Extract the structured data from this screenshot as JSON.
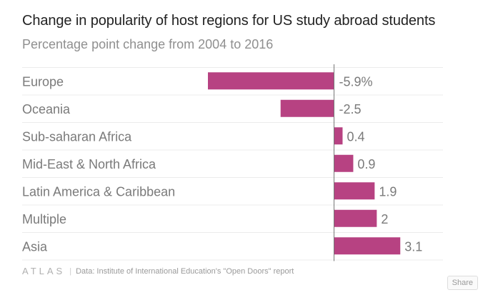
{
  "title": "Change in popularity of host regions for US study abroad students",
  "subtitle": "Percentage point change from 2004 to 2016",
  "footer": {
    "brand": "ATLAS",
    "source": "Data:  Institute of International Education's \"Open Doors\" report"
  },
  "share_label": "Share",
  "colors": {
    "bar": "#b74282",
    "label": "#7a7a7a",
    "grid": "#ececec",
    "zero_line": "#777777"
  },
  "chart_data": {
    "type": "bar",
    "orientation": "horizontal",
    "title": "Change in popularity of host regions for US study abroad students",
    "subtitle": "Percentage point change from 2004 to 2016",
    "categories": [
      "Europe",
      "Oceania",
      "Sub-saharan Africa",
      "Mid-East & North Africa",
      "Latin America & Caribbean",
      "Multiple",
      "Asia"
    ],
    "values": [
      -5.9,
      -2.5,
      0.4,
      0.9,
      1.9,
      2,
      3.1
    ],
    "value_labels": [
      "-5.9%",
      "-2.5",
      "0.4",
      "0.9",
      "1.9",
      "2",
      "3.1"
    ],
    "xlim": [
      -5.9,
      3.1
    ],
    "grid": true
  }
}
